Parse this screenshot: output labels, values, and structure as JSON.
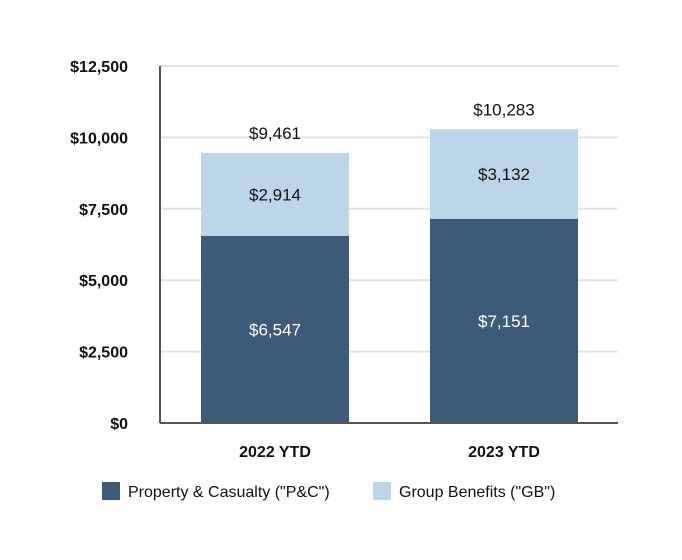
{
  "chart_data": {
    "type": "bar",
    "stacked": true,
    "categories": [
      "2022 YTD",
      "2023 YTD"
    ],
    "series": [
      {
        "name": "Property & Casualty (\"P&C\")",
        "values": [
          6547,
          7151
        ],
        "labels": [
          "$6,547",
          "$7,151"
        ],
        "color": "#3d5a78"
      },
      {
        "name": "Group Benefits (\"GB\")",
        "values": [
          2914,
          3132
        ],
        "labels": [
          "$2,914",
          "$3,132"
        ],
        "color": "#bcd6e8"
      }
    ],
    "totals": [
      9461,
      10283
    ],
    "total_labels": [
      "$9,461",
      "$10,283"
    ],
    "ylim": [
      0,
      12500
    ],
    "yticks": [
      0,
      2500,
      5000,
      7500,
      10000,
      12500
    ],
    "ytick_labels": [
      "$0",
      "$2,500",
      "$5,000",
      "$7,500",
      "$10,000",
      "$12,500"
    ],
    "grid": true,
    "legend_position": "bottom",
    "title": "",
    "xlabel": "",
    "ylabel": ""
  }
}
